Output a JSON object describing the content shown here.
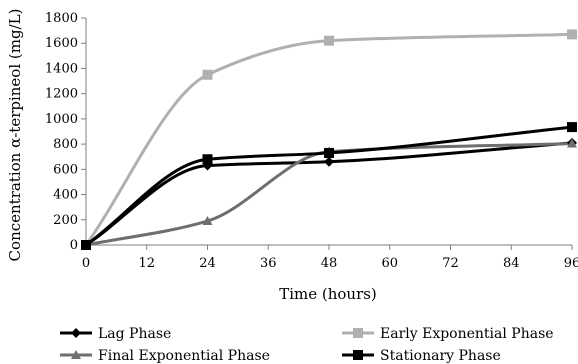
{
  "chart_data": {
    "type": "line",
    "xlabel": "Time (hours)",
    "ylabel": "Concentration α-terpineol (mg/L)",
    "xlim": [
      0,
      96
    ],
    "ylim": [
      0,
      1800
    ],
    "xticks": [
      0,
      12,
      24,
      36,
      48,
      60,
      72,
      84,
      96
    ],
    "yticks": [
      0,
      200,
      400,
      600,
      800,
      1000,
      1200,
      1400,
      1600,
      1800
    ],
    "x": [
      0,
      24,
      48,
      96
    ],
    "smooth": true,
    "grid": false,
    "legend_position": "bottom",
    "series": [
      {
        "name": "Lag Phase",
        "values": [
          0,
          630,
          660,
          810
        ],
        "color": "#000000",
        "marker": "diamond"
      },
      {
        "name": "Early Exponential Phase",
        "values": [
          0,
          1350,
          1620,
          1670
        ],
        "color": "#b0b0b0",
        "marker": "square"
      },
      {
        "name": "Final Exponential Phase",
        "values": [
          0,
          190,
          740,
          805
        ],
        "color": "#6e6e6e",
        "marker": "triangle"
      },
      {
        "name": "Stationary Phase",
        "values": [
          0,
          680,
          730,
          935
        ],
        "color": "#000000",
        "marker": "square"
      }
    ]
  }
}
